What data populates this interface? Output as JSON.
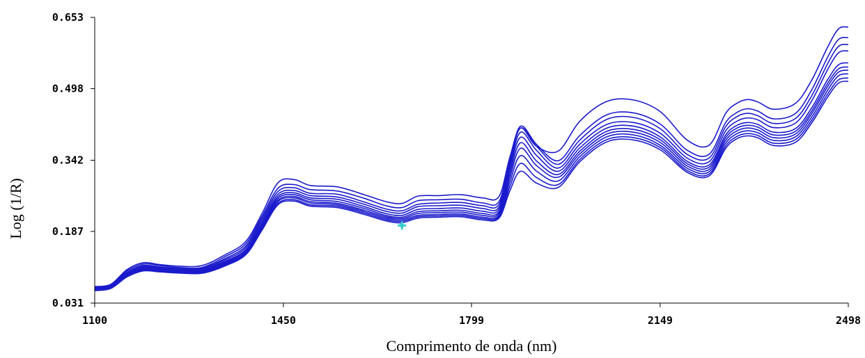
{
  "chart_data": {
    "type": "line",
    "title": "",
    "xlabel": "Comprimento de onda (nm)",
    "ylabel": "Log (1/R)",
    "xlim": [
      1100,
      2498
    ],
    "ylim": [
      0.031,
      0.653
    ],
    "x_ticks": [
      "1100",
      "1450",
      "1799",
      "2149",
      "2498"
    ],
    "y_ticks": [
      "0.653",
      "0.498",
      "0.342",
      "0.187",
      "0.031"
    ],
    "grid": false,
    "legend": "none",
    "line_color": "#1a1acc",
    "marker_color": "#33cccc",
    "marker": {
      "x": 1670,
      "y": 0.2
    },
    "x": [
      1100,
      1130,
      1160,
      1190,
      1220,
      1260,
      1300,
      1340,
      1380,
      1410,
      1440,
      1470,
      1500,
      1550,
      1600,
      1640,
      1670,
      1700,
      1740,
      1780,
      1820,
      1850,
      1870,
      1890,
      1920,
      1960,
      2000,
      2050,
      2100,
      2150,
      2200,
      2240,
      2270,
      2290,
      2310,
      2330,
      2360,
      2400,
      2430,
      2460,
      2480,
      2498
    ],
    "series": [
      {
        "values": [
          0.067,
          0.072,
          0.104,
          0.119,
          0.115,
          0.111,
          0.113,
          0.135,
          0.165,
          0.225,
          0.293,
          0.3,
          0.287,
          0.284,
          0.267,
          0.252,
          0.248,
          0.264,
          0.265,
          0.267,
          0.26,
          0.263,
          0.348,
          0.412,
          0.372,
          0.362,
          0.427,
          0.47,
          0.473,
          0.447,
          0.385,
          0.375,
          0.443,
          0.465,
          0.474,
          0.469,
          0.453,
          0.466,
          0.516,
          0.589,
          0.628,
          0.632
        ]
      },
      {
        "values": [
          0.066,
          0.071,
          0.101,
          0.116,
          0.113,
          0.108,
          0.109,
          0.131,
          0.16,
          0.219,
          0.281,
          0.289,
          0.278,
          0.275,
          0.259,
          0.243,
          0.239,
          0.254,
          0.256,
          0.257,
          0.249,
          0.252,
          0.342,
          0.416,
          0.376,
          0.341,
          0.396,
          0.441,
          0.445,
          0.42,
          0.363,
          0.355,
          0.423,
          0.445,
          0.454,
          0.449,
          0.432,
          0.444,
          0.495,
          0.567,
          0.605,
          0.609
        ]
      },
      {
        "values": [
          0.065,
          0.07,
          0.098,
          0.113,
          0.11,
          0.106,
          0.107,
          0.127,
          0.155,
          0.214,
          0.274,
          0.282,
          0.27,
          0.268,
          0.251,
          0.236,
          0.232,
          0.246,
          0.249,
          0.25,
          0.243,
          0.246,
          0.338,
          0.412,
          0.372,
          0.333,
          0.386,
          0.431,
          0.435,
          0.41,
          0.354,
          0.347,
          0.414,
          0.436,
          0.444,
          0.439,
          0.422,
          0.433,
          0.482,
          0.553,
          0.59,
          0.594
        ]
      },
      {
        "values": [
          0.064,
          0.069,
          0.096,
          0.111,
          0.108,
          0.104,
          0.105,
          0.124,
          0.151,
          0.209,
          0.268,
          0.276,
          0.265,
          0.262,
          0.246,
          0.231,
          0.227,
          0.241,
          0.243,
          0.244,
          0.237,
          0.24,
          0.33,
          0.403,
          0.363,
          0.325,
          0.377,
          0.42,
          0.424,
          0.4,
          0.346,
          0.339,
          0.405,
          0.426,
          0.434,
          0.43,
          0.413,
          0.423,
          0.471,
          0.54,
          0.576,
          0.58
        ]
      },
      {
        "values": [
          0.063,
          0.068,
          0.094,
          0.109,
          0.106,
          0.102,
          0.103,
          0.121,
          0.147,
          0.204,
          0.263,
          0.271,
          0.26,
          0.257,
          0.241,
          0.226,
          0.222,
          0.235,
          0.237,
          0.238,
          0.231,
          0.235,
          0.322,
          0.392,
          0.352,
          0.318,
          0.369,
          0.412,
          0.416,
          0.392,
          0.339,
          0.332,
          0.396,
          0.417,
          0.424,
          0.42,
          0.403,
          0.411,
          0.456,
          0.518,
          0.55,
          0.554
        ]
      },
      {
        "values": [
          0.062,
          0.067,
          0.093,
          0.107,
          0.104,
          0.1,
          0.101,
          0.119,
          0.145,
          0.201,
          0.259,
          0.267,
          0.256,
          0.252,
          0.237,
          0.222,
          0.218,
          0.23,
          0.232,
          0.233,
          0.226,
          0.23,
          0.313,
          0.38,
          0.34,
          0.311,
          0.362,
          0.405,
          0.409,
          0.386,
          0.334,
          0.327,
          0.39,
          0.411,
          0.418,
          0.414,
          0.397,
          0.405,
          0.449,
          0.51,
          0.541,
          0.545
        ]
      },
      {
        "values": [
          0.061,
          0.066,
          0.091,
          0.105,
          0.102,
          0.099,
          0.1,
          0.117,
          0.142,
          0.198,
          0.255,
          0.263,
          0.252,
          0.248,
          0.233,
          0.219,
          0.215,
          0.226,
          0.228,
          0.229,
          0.222,
          0.226,
          0.304,
          0.368,
          0.33,
          0.305,
          0.356,
          0.399,
          0.403,
          0.38,
          0.329,
          0.322,
          0.384,
          0.405,
          0.412,
          0.408,
          0.391,
          0.399,
          0.443,
          0.503,
          0.534,
          0.538
        ]
      },
      {
        "values": [
          0.06,
          0.065,
          0.09,
          0.104,
          0.101,
          0.098,
          0.099,
          0.115,
          0.14,
          0.195,
          0.252,
          0.26,
          0.249,
          0.245,
          0.23,
          0.216,
          0.212,
          0.222,
          0.224,
          0.225,
          0.218,
          0.222,
          0.294,
          0.352,
          0.318,
          0.297,
          0.35,
          0.393,
          0.397,
          0.374,
          0.324,
          0.317,
          0.378,
          0.399,
          0.406,
          0.402,
          0.385,
          0.393,
          0.436,
          0.495,
          0.526,
          0.53
        ]
      },
      {
        "values": [
          0.059,
          0.064,
          0.089,
          0.102,
          0.1,
          0.097,
          0.097,
          0.113,
          0.138,
          0.192,
          0.248,
          0.256,
          0.245,
          0.242,
          0.227,
          0.213,
          0.209,
          0.219,
          0.221,
          0.222,
          0.215,
          0.219,
          0.284,
          0.335,
          0.304,
          0.289,
          0.344,
          0.387,
          0.391,
          0.369,
          0.319,
          0.312,
          0.372,
          0.393,
          0.4,
          0.396,
          0.379,
          0.387,
          0.429,
          0.487,
          0.517,
          0.521
        ]
      },
      {
        "values": [
          0.058,
          0.063,
          0.088,
          0.101,
          0.099,
          0.096,
          0.096,
          0.111,
          0.136,
          0.189,
          0.245,
          0.253,
          0.242,
          0.239,
          0.224,
          0.21,
          0.206,
          0.216,
          0.218,
          0.219,
          0.212,
          0.216,
          0.275,
          0.318,
          0.292,
          0.283,
          0.339,
          0.382,
          0.386,
          0.364,
          0.315,
          0.308,
          0.367,
          0.388,
          0.395,
          0.391,
          0.374,
          0.381,
          0.423,
          0.48,
          0.51,
          0.514
        ]
      }
    ]
  }
}
